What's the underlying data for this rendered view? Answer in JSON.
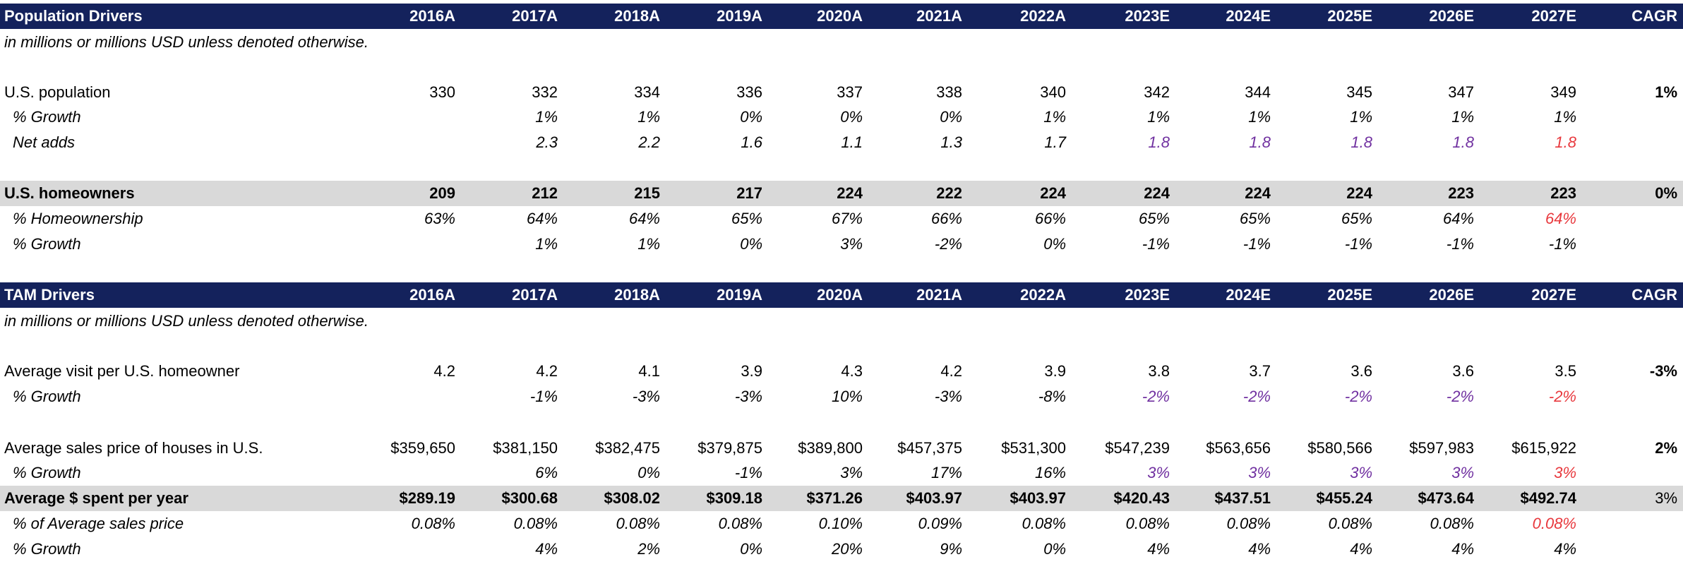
{
  "colors": {
    "header_bg": "#14225c",
    "band_bg": "#d9d9d9",
    "forecast_purple": "#7030a0",
    "forecast_red": "#e8383d"
  },
  "years": [
    "2016A",
    "2017A",
    "2018A",
    "2019A",
    "2020A",
    "2021A",
    "2022A",
    "2023E",
    "2024E",
    "2025E",
    "2026E",
    "2027E"
  ],
  "cagr_label": "CAGR",
  "population": {
    "title": "Population Drivers",
    "note": "in millions or millions USD unless denoted otherwise.",
    "us_population": {
      "label": "U.S. population",
      "values": [
        "330",
        "332",
        "334",
        "336",
        "337",
        "338",
        "340",
        "342",
        "344",
        "345",
        "347",
        "349"
      ],
      "cagr": "1%"
    },
    "pop_growth": {
      "label": "% Growth",
      "values": [
        "",
        "1%",
        "1%",
        "0%",
        "0%",
        "0%",
        "1%",
        "1%",
        "1%",
        "1%",
        "1%",
        "1%"
      ]
    },
    "net_adds": {
      "label": "Net adds",
      "values": [
        "",
        "2.3",
        "2.2",
        "1.6",
        "1.1",
        "1.3",
        "1.7",
        "1.8",
        "1.8",
        "1.8",
        "1.8",
        "1.8"
      ]
    },
    "homeowners": {
      "label": "U.S. homeowners",
      "values": [
        "209",
        "212",
        "215",
        "217",
        "224",
        "222",
        "224",
        "224",
        "224",
        "224",
        "223",
        "223"
      ],
      "cagr": "0%"
    },
    "homeownership": {
      "label": "% Homeownership",
      "values": [
        "63%",
        "64%",
        "64%",
        "65%",
        "67%",
        "66%",
        "66%",
        "65%",
        "65%",
        "65%",
        "64%",
        "64%"
      ]
    },
    "ho_growth": {
      "label": "% Growth",
      "values": [
        "",
        "1%",
        "1%",
        "0%",
        "3%",
        "-2%",
        "0%",
        "-1%",
        "-1%",
        "-1%",
        "-1%",
        "-1%"
      ]
    }
  },
  "tam": {
    "title": "TAM Drivers",
    "note": "in millions or millions USD unless denoted otherwise.",
    "avg_visit": {
      "label": "Average visit per U.S. homeowner",
      "values": [
        "4.2",
        "4.2",
        "4.1",
        "3.9",
        "4.3",
        "4.2",
        "3.9",
        "3.8",
        "3.7",
        "3.6",
        "3.6",
        "3.5"
      ],
      "cagr": "-3%"
    },
    "visit_growth": {
      "label": "% Growth",
      "values": [
        "",
        "-1%",
        "-3%",
        "-3%",
        "10%",
        "-3%",
        "-8%",
        "-2%",
        "-2%",
        "-2%",
        "-2%",
        "-2%"
      ]
    },
    "avg_price": {
      "label": "Average sales price of houses in U.S.",
      "values": [
        "$359,650",
        "$381,150",
        "$382,475",
        "$379,875",
        "$389,800",
        "$457,375",
        "$531,300",
        "$547,239",
        "$563,656",
        "$580,566",
        "$597,983",
        "$615,922"
      ],
      "cagr": "2%"
    },
    "price_growth": {
      "label": "% Growth",
      "values": [
        "",
        "6%",
        "0%",
        "-1%",
        "3%",
        "17%",
        "16%",
        "3%",
        "3%",
        "3%",
        "3%",
        "3%"
      ]
    },
    "avg_spent": {
      "label": "Average $ spent per year",
      "values": [
        "$289.19",
        "$300.68",
        "$308.02",
        "$309.18",
        "$371.26",
        "$403.97",
        "$403.97",
        "$420.43",
        "$437.51",
        "$455.24",
        "$473.64",
        "$492.74"
      ],
      "cagr": "3%"
    },
    "pct_of_price": {
      "label": "% of Average sales price",
      "values": [
        "0.08%",
        "0.08%",
        "0.08%",
        "0.08%",
        "0.10%",
        "0.09%",
        "0.08%",
        "0.08%",
        "0.08%",
        "0.08%",
        "0.08%",
        "0.08%"
      ]
    },
    "spent_growth": {
      "label": "% Growth",
      "values": [
        "",
        "4%",
        "2%",
        "0%",
        "20%",
        "9%",
        "0%",
        "4%",
        "4%",
        "4%",
        "4%",
        "4%"
      ]
    }
  }
}
